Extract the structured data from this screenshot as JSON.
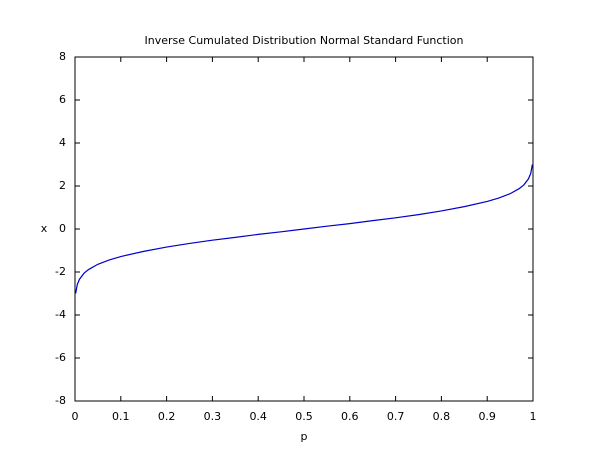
{
  "chart_data": {
    "type": "line",
    "title": "Inverse Cumulated Distribution Normal Standard Function",
    "x_label": "p",
    "y_label": "x",
    "x": [
      0.00135,
      0.005,
      0.01,
      0.02,
      0.03,
      0.05,
      0.075,
      0.1,
      0.15,
      0.2,
      0.25,
      0.3,
      0.35,
      0.4,
      0.45,
      0.5,
      0.55,
      0.6,
      0.65,
      0.7,
      0.75,
      0.8,
      0.85,
      0.9,
      0.925,
      0.95,
      0.97,
      0.98,
      0.99,
      0.995,
      0.99865
    ],
    "series": [
      {
        "color": "#0000cc",
        "values": [
          -3.0,
          -2.58,
          -2.33,
          -2.05,
          -1.88,
          -1.64,
          -1.44,
          -1.28,
          -1.04,
          -0.84,
          -0.67,
          -0.52,
          -0.39,
          -0.25,
          -0.13,
          0,
          0.13,
          0.25,
          0.39,
          0.52,
          0.67,
          0.84,
          1.04,
          1.28,
          1.44,
          1.64,
          1.88,
          2.05,
          2.33,
          2.58,
          3.0
        ]
      }
    ],
    "xlim": [
      0,
      1
    ],
    "xticks": [
      0,
      0.1,
      0.2,
      0.3,
      0.4,
      0.5,
      0.6,
      0.7,
      0.8,
      0.9,
      1
    ],
    "ylim": [
      -8,
      8
    ],
    "yticks": [
      -8,
      -6,
      -4,
      -2,
      0,
      2,
      4,
      6,
      8
    ]
  }
}
